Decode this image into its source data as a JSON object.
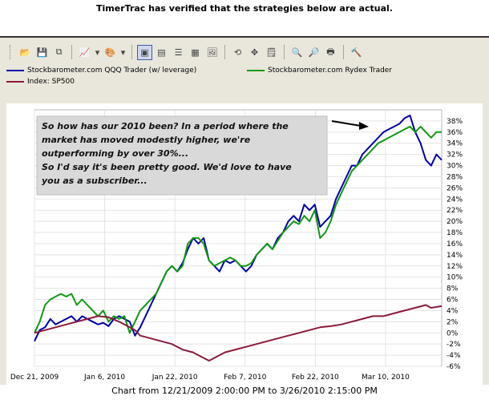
{
  "header": {
    "note": "TimerTrac has verified that the strategies below are actual."
  },
  "toolbar": {
    "buttons": [
      {
        "name": "open-folder-icon",
        "glyph": "📂"
      },
      {
        "name": "save-icon",
        "glyph": "💾"
      },
      {
        "name": "copy-icon",
        "glyph": "⧉"
      },
      {
        "name": "chart-type-icon",
        "glyph": "📈"
      },
      {
        "name": "chevron-down-icon",
        "glyph": "▾"
      },
      {
        "name": "palette-icon",
        "glyph": "🎨"
      },
      {
        "name": "chevron-down-icon",
        "glyph": "▾"
      },
      {
        "name": "layout-one-icon",
        "glyph": "▣"
      },
      {
        "name": "layout-two-icon",
        "glyph": "▤"
      },
      {
        "name": "layout-list-icon",
        "glyph": "☰"
      },
      {
        "name": "grid-icon",
        "glyph": "▦"
      },
      {
        "name": "picture-icon",
        "glyph": "🖼"
      },
      {
        "name": "rotate-icon",
        "glyph": "⟲"
      },
      {
        "name": "move-icon",
        "glyph": "✥"
      },
      {
        "name": "note-icon",
        "glyph": "🗒"
      },
      {
        "name": "zoom-icon",
        "glyph": "🔍"
      },
      {
        "name": "preview-icon",
        "glyph": "🔎"
      },
      {
        "name": "print-icon",
        "glyph": "🖶"
      },
      {
        "name": "tools-icon",
        "glyph": "🔨"
      }
    ]
  },
  "chart_data": {
    "type": "line",
    "x_ticks": [
      "Dec 21, 2009",
      "Jan 6, 2010",
      "Jan 22, 2010",
      "Feb 7, 2010",
      "Feb 22, 2010",
      "Mar 10, 2010"
    ],
    "ylim": [
      -6,
      40
    ],
    "y_ticks": [
      -6,
      -4,
      -2,
      0,
      2,
      4,
      6,
      8,
      10,
      12,
      14,
      16,
      18,
      20,
      22,
      24,
      26,
      28,
      30,
      32,
      34,
      36,
      38
    ],
    "grid": true,
    "legend_position": "top",
    "annotation": {
      "lines": [
        "So how has our 2010 been?  In a period where the",
        "market has moved modestly higher, we're",
        "outperforming by over 30%...",
        "So I'd say it's been pretty good.  We'd love to have",
        "you as a subscriber..."
      ]
    },
    "series": [
      {
        "name": "Stockbarometer.com QQQ Trader (w/ leverage)",
        "color": "#0000aa",
        "points": [
          [
            0,
            -1.5
          ],
          [
            1,
            0.5
          ],
          [
            2,
            1
          ],
          [
            3,
            2.5
          ],
          [
            4,
            1.5
          ],
          [
            5,
            2
          ],
          [
            6,
            2.5
          ],
          [
            7,
            3
          ],
          [
            8,
            2
          ],
          [
            9,
            3
          ],
          [
            10,
            2.5
          ],
          [
            11,
            2
          ],
          [
            12,
            1.5
          ],
          [
            13,
            1.8
          ],
          [
            14,
            1.2
          ],
          [
            15,
            2.5
          ],
          [
            16,
            3
          ],
          [
            17,
            2.5
          ],
          [
            18,
            2
          ],
          [
            19,
            -0.5
          ],
          [
            20,
            1
          ],
          [
            21,
            3
          ],
          [
            22,
            5
          ],
          [
            23,
            7
          ],
          [
            24,
            9
          ],
          [
            25,
            11
          ],
          [
            26,
            12
          ],
          [
            27,
            11
          ],
          [
            28,
            12.5
          ],
          [
            29,
            15
          ],
          [
            30,
            17
          ],
          [
            31,
            16
          ],
          [
            32,
            17
          ],
          [
            33,
            13
          ],
          [
            34,
            12
          ],
          [
            35,
            11
          ],
          [
            36,
            13
          ],
          [
            37,
            12.5
          ],
          [
            38,
            13
          ],
          [
            39,
            12
          ],
          [
            40,
            11
          ],
          [
            41,
            12
          ],
          [
            42,
            14
          ],
          [
            43,
            15
          ],
          [
            44,
            16
          ],
          [
            45,
            15
          ],
          [
            46,
            17
          ],
          [
            47,
            18
          ],
          [
            48,
            20
          ],
          [
            49,
            21
          ],
          [
            50,
            20
          ],
          [
            51,
            23
          ],
          [
            52,
            22
          ],
          [
            53,
            23
          ],
          [
            54,
            19
          ],
          [
            55,
            20
          ],
          [
            56,
            21
          ],
          [
            57,
            24
          ],
          [
            58,
            26
          ],
          [
            59,
            28
          ],
          [
            60,
            30
          ],
          [
            61,
            30
          ],
          [
            62,
            32
          ],
          [
            63,
            33
          ],
          [
            64,
            34
          ],
          [
            65,
            35
          ],
          [
            66,
            36
          ],
          [
            67,
            36.5
          ],
          [
            68,
            37
          ],
          [
            69,
            37.5
          ],
          [
            70,
            38.5
          ],
          [
            71,
            39
          ],
          [
            72,
            36
          ],
          [
            73,
            34
          ],
          [
            74,
            31
          ],
          [
            75,
            30
          ],
          [
            76,
            32
          ],
          [
            77,
            31
          ]
        ]
      },
      {
        "name": "Stockbarometer.com Rydex Trader",
        "color": "#119911",
        "points": [
          [
            0,
            0
          ],
          [
            1,
            2
          ],
          [
            2,
            5
          ],
          [
            3,
            6
          ],
          [
            4,
            6.5
          ],
          [
            5,
            7
          ],
          [
            6,
            6.5
          ],
          [
            7,
            7
          ],
          [
            8,
            5
          ],
          [
            9,
            6
          ],
          [
            10,
            5
          ],
          [
            11,
            4
          ],
          [
            12,
            3
          ],
          [
            13,
            4
          ],
          [
            14,
            2
          ],
          [
            15,
            3
          ],
          [
            16,
            2.5
          ],
          [
            17,
            3
          ],
          [
            18,
            0
          ],
          [
            19,
            2
          ],
          [
            20,
            4
          ],
          [
            21,
            5
          ],
          [
            22,
            6
          ],
          [
            23,
            7
          ],
          [
            24,
            9
          ],
          [
            25,
            11
          ],
          [
            26,
            12
          ],
          [
            27,
            11
          ],
          [
            28,
            12
          ],
          [
            29,
            16
          ],
          [
            30,
            17
          ],
          [
            31,
            17
          ],
          [
            32,
            16
          ],
          [
            33,
            13
          ],
          [
            34,
            12
          ],
          [
            35,
            12.5
          ],
          [
            36,
            13
          ],
          [
            37,
            13.5
          ],
          [
            38,
            13
          ],
          [
            39,
            12
          ],
          [
            40,
            12
          ],
          [
            41,
            12.5
          ],
          [
            42,
            14
          ],
          [
            43,
            15
          ],
          [
            44,
            16
          ],
          [
            45,
            15
          ],
          [
            46,
            16.5
          ],
          [
            47,
            18
          ],
          [
            48,
            19
          ],
          [
            49,
            20
          ],
          [
            50,
            19.5
          ],
          [
            51,
            21
          ],
          [
            52,
            20
          ],
          [
            53,
            22
          ],
          [
            54,
            17
          ],
          [
            55,
            18
          ],
          [
            56,
            20
          ],
          [
            57,
            23
          ],
          [
            58,
            25
          ],
          [
            59,
            27
          ],
          [
            60,
            29
          ],
          [
            61,
            30
          ],
          [
            62,
            31
          ],
          [
            63,
            32
          ],
          [
            64,
            33
          ],
          [
            65,
            34
          ],
          [
            66,
            34.5
          ],
          [
            67,
            35
          ],
          [
            68,
            35.5
          ],
          [
            69,
            36
          ],
          [
            70,
            36.5
          ],
          [
            71,
            37
          ],
          [
            72,
            36
          ],
          [
            73,
            37
          ],
          [
            74,
            36
          ],
          [
            75,
            35
          ],
          [
            76,
            36
          ],
          [
            77,
            36
          ]
        ]
      },
      {
        "name": "Index: SP500",
        "color": "#8b1a3a",
        "points": [
          [
            0,
            0
          ],
          [
            2,
            0.5
          ],
          [
            4,
            1
          ],
          [
            6,
            1.5
          ],
          [
            8,
            2
          ],
          [
            10,
            2.5
          ],
          [
            12,
            3
          ],
          [
            14,
            2.8
          ],
          [
            16,
            2
          ],
          [
            18,
            1
          ],
          [
            19,
            0.5
          ],
          [
            20,
            -0.5
          ],
          [
            22,
            -1
          ],
          [
            24,
            -1.5
          ],
          [
            26,
            -2
          ],
          [
            28,
            -3
          ],
          [
            30,
            -3.5
          ],
          [
            31,
            -4
          ],
          [
            32,
            -4.5
          ],
          [
            33,
            -5
          ],
          [
            34,
            -4.5
          ],
          [
            36,
            -3.5
          ],
          [
            38,
            -3
          ],
          [
            40,
            -2.5
          ],
          [
            42,
            -2
          ],
          [
            44,
            -1.5
          ],
          [
            46,
            -1
          ],
          [
            48,
            -0.5
          ],
          [
            50,
            0
          ],
          [
            52,
            0.5
          ],
          [
            54,
            1
          ],
          [
            56,
            1.2
          ],
          [
            58,
            1.5
          ],
          [
            60,
            2
          ],
          [
            62,
            2.5
          ],
          [
            64,
            3
          ],
          [
            66,
            3
          ],
          [
            68,
            3.5
          ],
          [
            70,
            4
          ],
          [
            72,
            4.5
          ],
          [
            74,
            5
          ],
          [
            75,
            4.5
          ],
          [
            77,
            4.8
          ]
        ]
      }
    ]
  },
  "footer": {
    "caption": "Chart from 12/21/2009 2:00:00 PM to 3/26/2010 2:15:00 PM"
  }
}
